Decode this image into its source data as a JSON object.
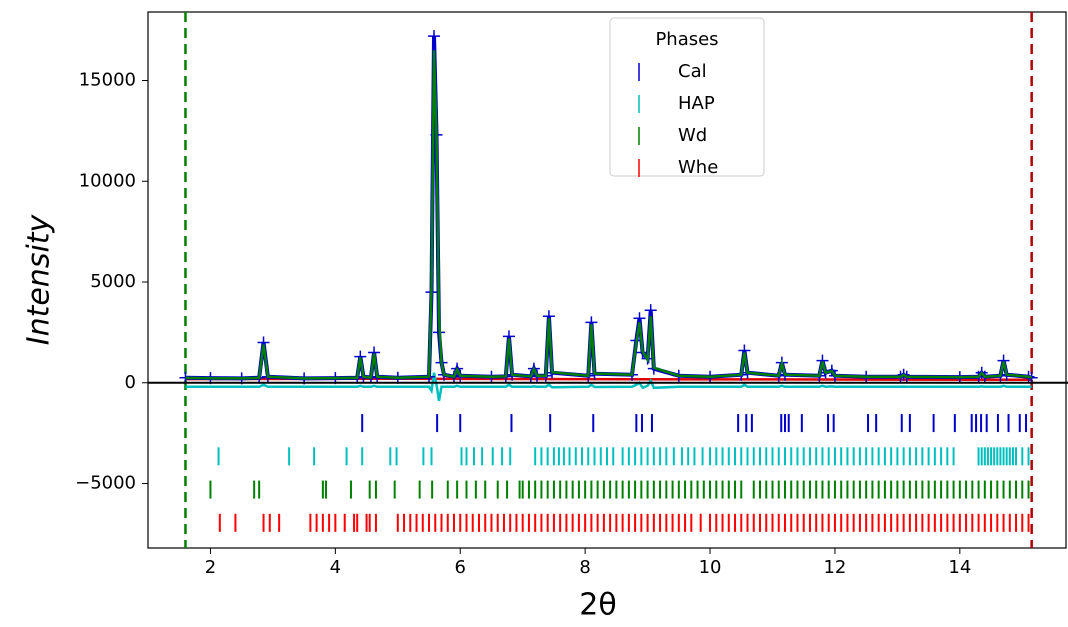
{
  "chart_data": {
    "type": "line",
    "xlabel": "2θ",
    "ylabel": "Intensity",
    "xlim": [
      1.0,
      15.7
    ],
    "ylim": [
      -8200,
      18400
    ],
    "xticks": [
      2,
      4,
      6,
      8,
      10,
      12,
      14
    ],
    "yticks": [
      {
        "value": -5000,
        "label": "−5000"
      },
      0,
      5000,
      10000,
      15000
    ],
    "x": [
      1.6,
      2.0,
      2.5,
      2.78,
      2.85,
      2.92,
      3.5,
      4.0,
      4.35,
      4.4,
      4.45,
      4.57,
      4.62,
      4.67,
      5.0,
      5.5,
      5.54,
      5.58,
      5.62,
      5.66,
      5.7,
      5.74,
      5.9,
      5.95,
      6.0,
      6.5,
      6.73,
      6.78,
      6.83,
      7.13,
      7.18,
      7.23,
      7.37,
      7.42,
      7.47,
      8.05,
      8.1,
      8.15,
      8.75,
      8.82,
      8.87,
      8.92,
      9.0,
      9.05,
      9.1,
      9.5,
      10.0,
      10.5,
      10.55,
      10.6,
      11.1,
      11.15,
      11.2,
      11.75,
      11.8,
      11.85,
      11.95,
      12.0,
      12.5,
      13.05,
      13.1,
      13.15,
      14.0,
      14.3,
      14.35,
      14.4,
      14.65,
      14.7,
      14.75,
      15.1,
      15.15
    ],
    "series": [
      {
        "color": "#0000cc",
        "marker": "+",
        "values": [
          250,
          230,
          220,
          250,
          2000,
          300,
          220,
          230,
          250,
          1300,
          300,
          260,
          1500,
          300,
          250,
          300,
          4500,
          17200,
          12300,
          2500,
          1000,
          400,
          300,
          700,
          350,
          300,
          320,
          2300,
          400,
          320,
          700,
          350,
          350,
          3300,
          500,
          350,
          3000,
          450,
          400,
          2100,
          3200,
          1500,
          1200,
          3600,
          700,
          350,
          300,
          400,
          1600,
          500,
          350,
          1000,
          400,
          350,
          1100,
          500,
          600,
          350,
          300,
          300,
          400,
          300,
          280,
          300,
          500,
          300,
          350,
          1100,
          400,
          300,
          250
        ]
      },
      {
        "color": "#008000",
        "values": [
          240,
          225,
          215,
          245,
          1900,
          300,
          220,
          230,
          250,
          1250,
          300,
          260,
          1450,
          300,
          250,
          300,
          4700,
          16500,
          12200,
          3200,
          1000,
          400,
          300,
          650,
          350,
          300,
          320,
          2200,
          400,
          320,
          680,
          350,
          350,
          3200,
          520,
          350,
          2900,
          460,
          400,
          2000,
          3000,
          1550,
          1150,
          3300,
          750,
          350,
          300,
          400,
          1500,
          500,
          350,
          950,
          400,
          350,
          1050,
          500,
          580,
          350,
          300,
          300,
          390,
          300,
          280,
          300,
          480,
          300,
          350,
          1050,
          400,
          300,
          250
        ]
      },
      {
        "color": "#00bfbf",
        "values": [
          -200,
          -200,
          -200,
          -200,
          -100,
          -200,
          -200,
          -200,
          -200,
          -150,
          -200,
          -200,
          -150,
          -200,
          -200,
          -200,
          -400,
          500,
          -100,
          -900,
          -200,
          -200,
          -200,
          -150,
          -200,
          -200,
          -200,
          -100,
          -200,
          -200,
          -180,
          -200,
          -200,
          -100,
          -220,
          -200,
          -100,
          -210,
          -200,
          -100,
          0,
          -250,
          -150,
          100,
          -250,
          -200,
          -200,
          -200,
          -100,
          -200,
          -200,
          -150,
          -200,
          -200,
          -150,
          -200,
          -180,
          -200,
          -200,
          -200,
          -190,
          -200,
          -200,
          -200,
          -180,
          -200,
          -200,
          -150,
          -200,
          -200,
          -200
        ]
      },
      {
        "color": "#e00000",
        "x": [
          1.6,
          5.0,
          10.0,
          15.15
        ],
        "values": [
          180,
          200,
          170,
          150
        ]
      }
    ],
    "vlines": [
      {
        "x": 1.6,
        "color": "#007f00"
      },
      {
        "x": 15.15,
        "color": "#b00000"
      }
    ],
    "legend_title": "Phases",
    "legend": "upper center",
    "phases": [
      {
        "name": "Cal",
        "color": "#0000cc",
        "positions": [
          4.43,
          5.63,
          6.0,
          6.82,
          7.44,
          8.13,
          8.82,
          8.91,
          9.07,
          10.45,
          10.58,
          10.67,
          11.14,
          11.2,
          11.26,
          11.47,
          11.89,
          11.98,
          12.53,
          12.66,
          13.07,
          13.2,
          13.58,
          13.92,
          14.19,
          14.26,
          14.34,
          14.43,
          14.61,
          14.78,
          14.96,
          15.06
        ]
      },
      {
        "name": "HAP",
        "color": "#00bfbf",
        "positions": [
          2.13,
          3.26,
          3.66,
          4.18,
          4.43,
          4.88,
          4.98,
          5.41,
          5.54,
          6.02,
          6.1,
          6.22,
          6.35,
          6.52,
          6.67,
          6.8,
          7.2,
          7.3,
          7.4,
          7.5,
          7.58,
          7.66,
          7.75,
          7.85,
          7.95,
          8.05,
          8.15,
          8.25,
          8.35,
          8.45,
          8.6,
          8.7,
          8.8,
          8.9,
          9.0,
          9.1,
          9.2,
          9.3,
          9.42,
          9.55,
          9.65,
          9.75,
          9.88,
          10.0,
          10.1,
          10.2,
          10.3,
          10.4,
          10.5,
          10.6,
          10.7,
          10.8,
          10.9,
          11.0,
          11.1,
          11.2,
          11.3,
          11.4,
          11.5,
          11.6,
          11.7,
          11.8,
          11.9,
          12.0,
          12.1,
          12.2,
          12.3,
          12.4,
          12.5,
          12.6,
          12.7,
          12.8,
          12.9,
          13.0,
          13.1,
          13.2,
          13.3,
          13.4,
          13.5,
          13.6,
          13.7,
          13.8,
          13.9,
          14.3,
          14.35,
          14.4,
          14.45,
          14.5,
          14.55,
          14.6,
          14.65,
          14.7,
          14.75,
          14.8,
          14.85,
          14.9,
          15.0,
          15.1
        ]
      },
      {
        "name": "Wd",
        "color": "#008000",
        "positions": [
          2.0,
          2.7,
          2.78,
          3.8,
          3.85,
          4.25,
          4.55,
          4.65,
          4.95,
          5.35,
          5.55,
          5.8,
          5.95,
          6.1,
          6.25,
          6.4,
          6.6,
          6.75,
          6.95,
          7.0,
          7.1,
          7.2,
          7.3,
          7.4,
          7.5,
          7.6,
          7.7,
          7.8,
          7.9,
          8.0,
          8.1,
          8.2,
          8.3,
          8.4,
          8.5,
          8.6,
          8.7,
          8.8,
          8.9,
          9.0,
          9.1,
          9.2,
          9.3,
          9.4,
          9.5,
          9.6,
          9.7,
          9.8,
          9.9,
          10.0,
          10.1,
          10.2,
          10.3,
          10.4,
          10.5,
          10.7,
          10.8,
          10.9,
          11.0,
          11.1,
          11.2,
          11.3,
          11.4,
          11.5,
          11.6,
          11.7,
          11.8,
          11.9,
          12.0,
          12.1,
          12.2,
          12.3,
          12.4,
          12.5,
          12.6,
          12.7,
          12.8,
          12.9,
          13.0,
          13.1,
          13.2,
          13.3,
          13.4,
          13.5,
          13.6,
          13.7,
          13.8,
          13.9,
          14.0,
          14.1,
          14.2,
          14.3,
          14.4,
          14.5,
          14.6,
          14.7,
          14.8,
          14.9,
          15.0,
          15.1
        ]
      },
      {
        "name": "Whe",
        "color": "#ff0000",
        "positions": [
          2.15,
          2.4,
          2.85,
          2.95,
          3.1,
          3.6,
          3.7,
          3.8,
          3.9,
          4.0,
          4.15,
          4.3,
          4.35,
          4.5,
          4.55,
          4.65,
          5.0,
          5.1,
          5.2,
          5.3,
          5.4,
          5.5,
          5.6,
          5.7,
          5.8,
          5.9,
          6.0,
          6.1,
          6.2,
          6.3,
          6.4,
          6.5,
          6.6,
          6.7,
          6.8,
          6.9,
          7.0,
          7.1,
          7.2,
          7.3,
          7.4,
          7.5,
          7.6,
          7.7,
          7.8,
          7.9,
          8.0,
          8.1,
          8.2,
          8.3,
          8.4,
          8.5,
          8.6,
          8.7,
          8.8,
          8.9,
          9.0,
          9.1,
          9.2,
          9.3,
          9.4,
          9.5,
          9.6,
          9.7,
          9.85,
          10.0,
          10.1,
          10.2,
          10.3,
          10.4,
          10.5,
          10.6,
          10.7,
          10.8,
          10.9,
          11.0,
          11.1,
          11.2,
          11.3,
          11.4,
          11.5,
          11.6,
          11.7,
          11.8,
          11.9,
          12.0,
          12.1,
          12.2,
          12.3,
          12.4,
          12.5,
          12.6,
          12.7,
          12.8,
          12.9,
          13.0,
          13.1,
          13.2,
          13.3,
          13.4,
          13.5,
          13.6,
          13.7,
          13.8,
          13.9,
          14.0,
          14.1,
          14.2,
          14.3,
          14.4,
          14.5,
          14.6,
          14.7,
          14.8,
          14.9,
          15.0,
          15.1
        ]
      }
    ]
  }
}
